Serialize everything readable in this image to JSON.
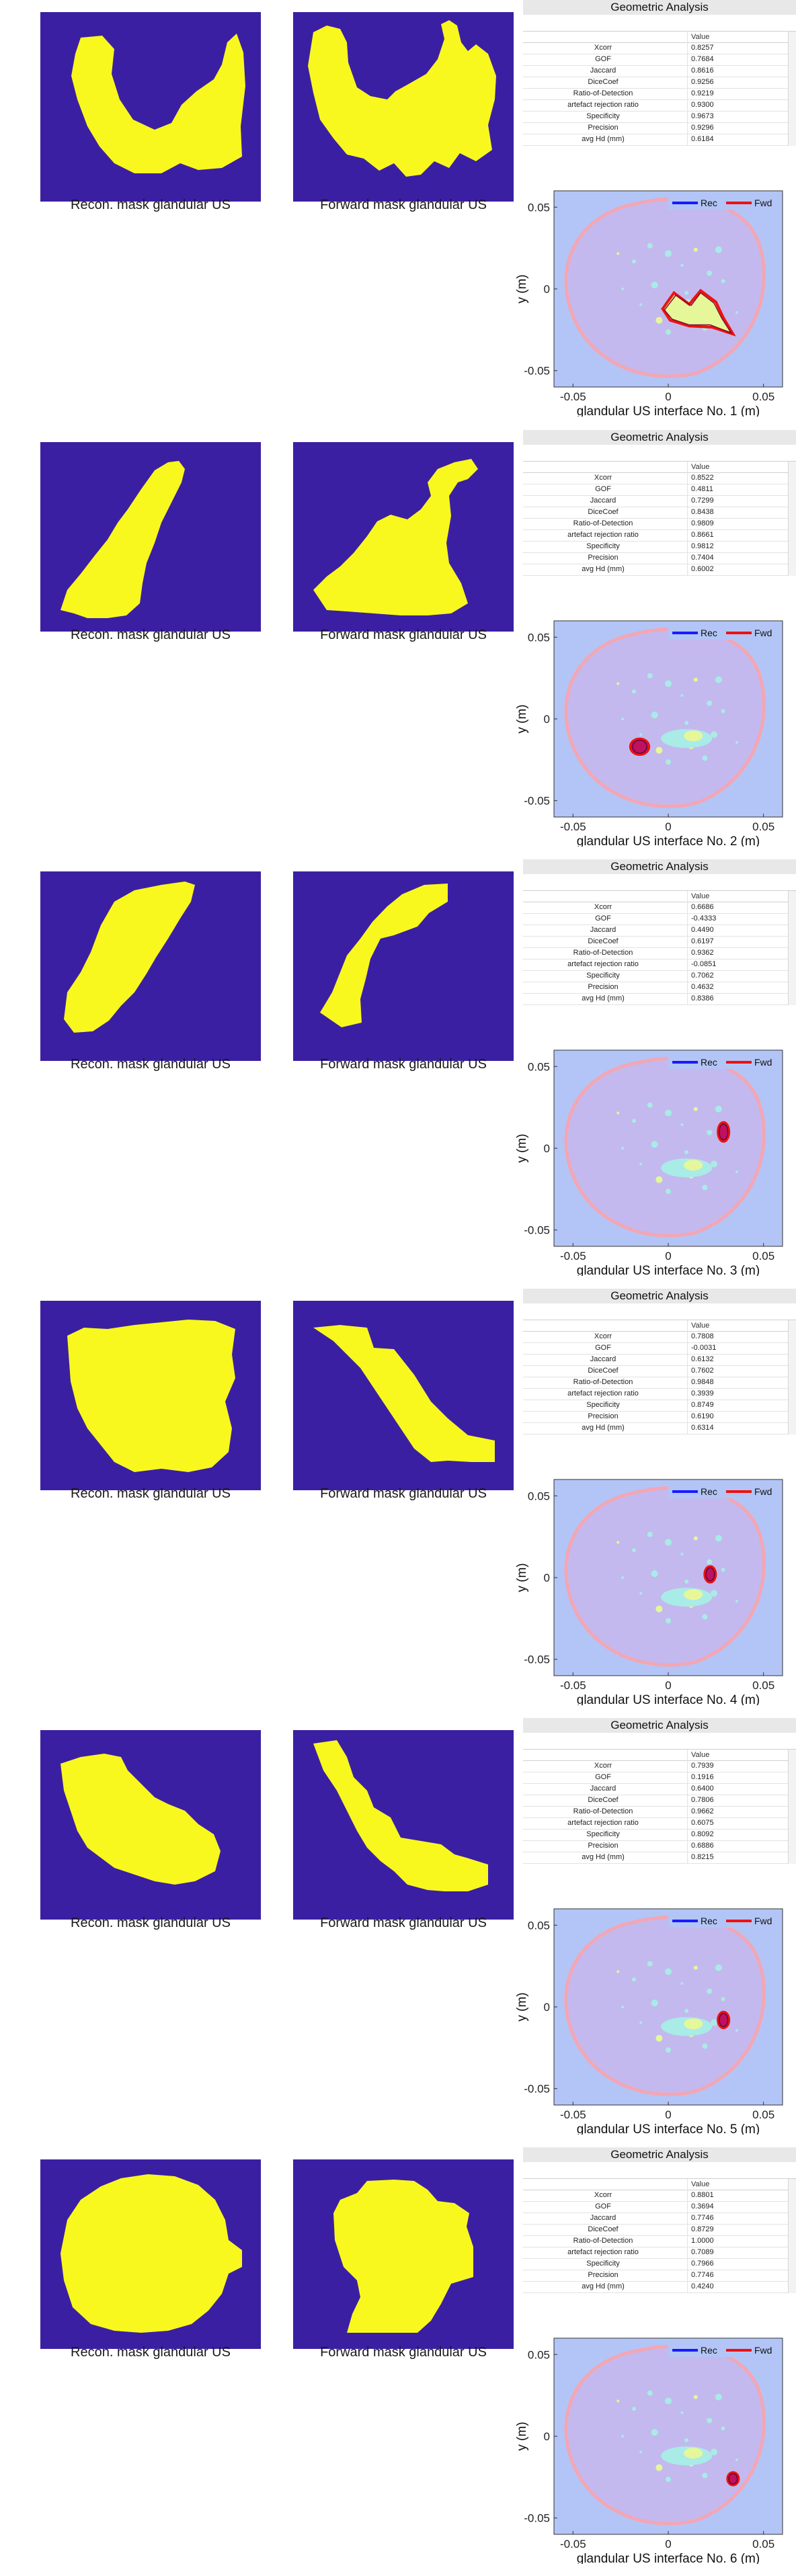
{
  "captions": {
    "recon": "Recon. mask glandular US",
    "forward": "Forward mask glandular US"
  },
  "table": {
    "title": "Geometric Analysis",
    "value_header": "Value",
    "metric_names": [
      "Xcorr",
      "GOF",
      "Jaccard",
      "DiceCoef",
      "Ratio-of-Detection",
      "artefact rejection ratio",
      "Specificity",
      "Precision",
      "avg Hd (mm)"
    ]
  },
  "colors": {
    "mask_bg": "#3b1fa2",
    "mask_fg": "#f8f81e",
    "plot_bg": "#b3c5f6",
    "tissue": "#c3b9ee",
    "tissue_edge": "#f3a6b4",
    "rec_color": "#1a1aff",
    "fwd_color": "#ee1111",
    "gland": "#a9ebe6",
    "gland_core": "#e6f79a"
  },
  "sections": [
    {
      "index": 1,
      "metrics": [
        "0.8257",
        "0.7684",
        "0.8616",
        "0.9256",
        "0.9219",
        "0.9300",
        "0.9673",
        "0.9296",
        "0.6184"
      ],
      "recon_mask_icon": "blob-u-shape",
      "forward_mask_icon": "blob-u-shape-noisy"
    },
    {
      "index": 2,
      "metrics": [
        "0.8522",
        "0.4811",
        "0.7299",
        "0.8438",
        "0.9809",
        "0.8661",
        "0.9812",
        "0.7404",
        "0.6002"
      ],
      "recon_mask_icon": "blob-diagonal",
      "forward_mask_icon": "blob-diagonal-notched"
    },
    {
      "index": 3,
      "metrics": [
        "0.6686",
        "-0.4333",
        "0.4490",
        "0.6197",
        "0.9362",
        "-0.0851",
        "0.7062",
        "0.4632",
        "0.8386"
      ],
      "recon_mask_icon": "blob-slanted",
      "forward_mask_icon": "blob-hook"
    },
    {
      "index": 4,
      "metrics": [
        "0.7808",
        "-0.0031",
        "0.6132",
        "0.7602",
        "0.9848",
        "0.3939",
        "0.8749",
        "0.6190",
        "0.6314"
      ],
      "recon_mask_icon": "blob-rectangle",
      "forward_mask_icon": "blob-staircase"
    },
    {
      "index": 5,
      "metrics": [
        "0.7939",
        "0.1916",
        "0.6400",
        "0.7806",
        "0.9662",
        "0.6075",
        "0.8092",
        "0.6886",
        "0.8215"
      ],
      "recon_mask_icon": "blob-bean",
      "forward_mask_icon": "blob-zigzag"
    },
    {
      "index": 6,
      "metrics": [
        "0.8801",
        "0.3694",
        "0.7746",
        "0.8729",
        "1.0000",
        "0.7089",
        "0.7966",
        "0.7746",
        "0.4240"
      ],
      "recon_mask_icon": "blob-round",
      "forward_mask_icon": "blob-cross"
    }
  ],
  "chart_data": [
    {
      "type": "scatter",
      "title": "",
      "xlabel": "glandular US interface No. 1 (m)",
      "ylabel": "y (m)",
      "xlim": [
        -0.06,
        0.06
      ],
      "ylim": [
        -0.06,
        0.06
      ],
      "xticks": [
        "-0.05",
        "0",
        "0.05"
      ],
      "yticks": [
        "0.05",
        "0",
        "-0.05"
      ],
      "legend": [
        "Rec",
        "Fwd"
      ],
      "legend_loc": "top-right",
      "series": [
        {
          "name": "Rec",
          "color": "#1a1aff"
        },
        {
          "name": "Fwd",
          "color": "#ee1111"
        }
      ],
      "lesion": {
        "x": 0.015,
        "y": -0.015,
        "rx": 0.02,
        "ry": 0.014
      }
    },
    {
      "type": "scatter",
      "title": "",
      "xlabel": "glandular US interface No. 2 (m)",
      "ylabel": "y (m)",
      "xlim": [
        -0.06,
        0.06
      ],
      "ylim": [
        -0.06,
        0.06
      ],
      "xticks": [
        "-0.05",
        "0",
        "0.05"
      ],
      "yticks": [
        "0.05",
        "0",
        "-0.05"
      ],
      "legend": [
        "Rec",
        "Fwd"
      ],
      "legend_loc": "top-right",
      "series": [
        {
          "name": "Rec",
          "color": "#1a1aff"
        },
        {
          "name": "Fwd",
          "color": "#ee1111"
        }
      ],
      "lesion": {
        "x": -0.015,
        "y": -0.017,
        "rx": 0.005,
        "ry": 0.005
      }
    },
    {
      "type": "scatter",
      "title": "",
      "xlabel": "glandular US interface No. 3 (m)",
      "ylabel": "y (m)",
      "xlim": [
        -0.06,
        0.06
      ],
      "ylim": [
        -0.06,
        0.06
      ],
      "xticks": [
        "-0.05",
        "0",
        "0.05"
      ],
      "yticks": [
        "0.05",
        "0",
        "-0.05"
      ],
      "legend": [
        "Rec",
        "Fwd"
      ],
      "legend_loc": "top-right",
      "series": [
        {
          "name": "Rec",
          "color": "#1a1aff"
        },
        {
          "name": "Fwd",
          "color": "#ee1111"
        }
      ],
      "lesion": {
        "x": 0.029,
        "y": 0.01,
        "rx": 0.003,
        "ry": 0.006
      }
    },
    {
      "type": "scatter",
      "title": "",
      "xlabel": "glandular US interface No. 4 (m)",
      "ylabel": "y (m)",
      "xlim": [
        -0.06,
        0.06
      ],
      "ylim": [
        -0.06,
        0.06
      ],
      "xticks": [
        "-0.05",
        "0",
        "0.05"
      ],
      "yticks": [
        "0.05",
        "0",
        "-0.05"
      ],
      "legend": [
        "Rec",
        "Fwd"
      ],
      "legend_loc": "top-right",
      "series": [
        {
          "name": "Rec",
          "color": "#1a1aff"
        },
        {
          "name": "Fwd",
          "color": "#ee1111"
        }
      ],
      "lesion": {
        "x": 0.022,
        "y": 0.002,
        "rx": 0.003,
        "ry": 0.005
      }
    },
    {
      "type": "scatter",
      "title": "",
      "xlabel": "glandular US interface No. 5 (m)",
      "ylabel": "y (m)",
      "xlim": [
        -0.06,
        0.06
      ],
      "ylim": [
        -0.06,
        0.06
      ],
      "xticks": [
        "-0.05",
        "0",
        "0.05"
      ],
      "yticks": [
        "0.05",
        "0",
        "-0.05"
      ],
      "legend": [
        "Rec",
        "Fwd"
      ],
      "legend_loc": "top-right",
      "series": [
        {
          "name": "Rec",
          "color": "#1a1aff"
        },
        {
          "name": "Fwd",
          "color": "#ee1111"
        }
      ],
      "lesion": {
        "x": 0.029,
        "y": -0.008,
        "rx": 0.003,
        "ry": 0.005
      }
    },
    {
      "type": "scatter",
      "title": "",
      "xlabel": "glandular US interface No. 6 (m)",
      "ylabel": "y (m)",
      "xlim": [
        -0.06,
        0.06
      ],
      "ylim": [
        -0.06,
        0.06
      ],
      "xticks": [
        "-0.05",
        "0",
        "0.05"
      ],
      "yticks": [
        "0.05",
        "0",
        "-0.05"
      ],
      "legend": [
        "Rec",
        "Fwd"
      ],
      "legend_loc": "top-right",
      "series": [
        {
          "name": "Rec",
          "color": "#1a1aff"
        },
        {
          "name": "Fwd",
          "color": "#ee1111"
        }
      ],
      "lesion": {
        "x": 0.034,
        "y": -0.026,
        "rx": 0.003,
        "ry": 0.004
      }
    }
  ]
}
